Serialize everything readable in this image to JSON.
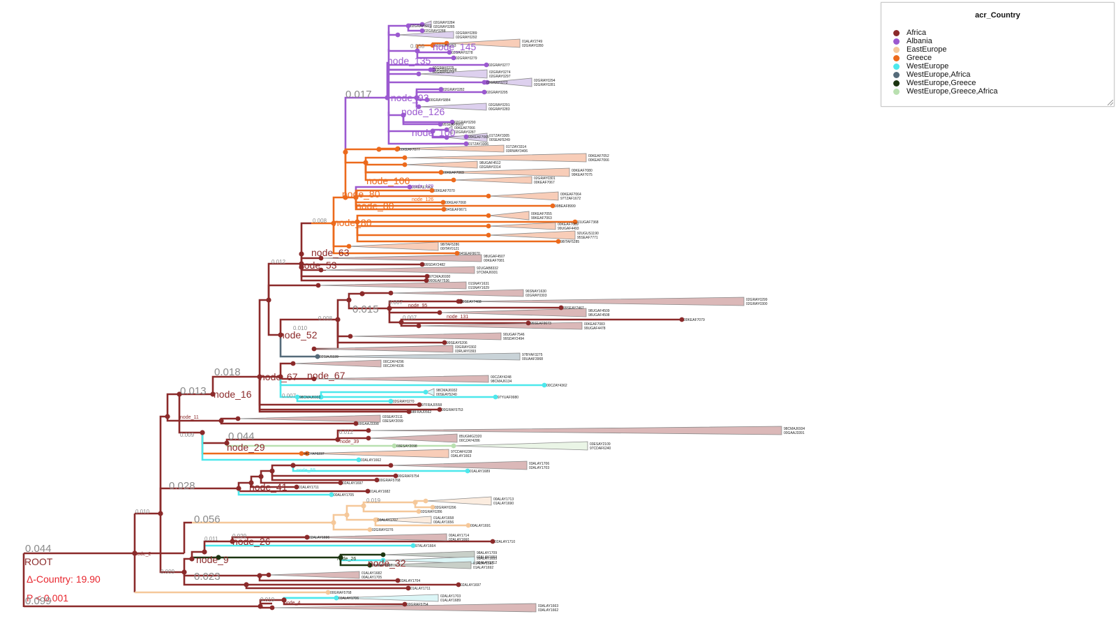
{
  "legend": {
    "title": "acr_Country",
    "items": [
      {
        "label": "Africa",
        "color": "#8b2a2a"
      },
      {
        "label": "Albania",
        "color": "#9b59d0"
      },
      {
        "label": "EastEurope",
        "color": "#f5c89a"
      },
      {
        "label": "Greece",
        "color": "#ec6a1c"
      },
      {
        "label": "WestEurope",
        "color": "#4de8ec"
      },
      {
        "label": "WestEurope,Africa",
        "color": "#556b7a"
      },
      {
        "label": "WestEurope,Greece",
        "color": "#1c3511"
      },
      {
        "label": "WestEurope,Greece,Africa",
        "color": "#b9e0b0"
      }
    ]
  },
  "root": {
    "label": "ROOT",
    "delta": "Δ-Country: 19.90",
    "pvalue": "P < 0.001",
    "root_branch_length": "0.044",
    "lower_branch_length": "0.099"
  },
  "branch_labels": [
    "0.017",
    "0.012",
    "0.015",
    "0.018",
    "0.013",
    "0.044",
    "0.028",
    "0.056",
    "0.023",
    "0.029",
    "0.011",
    "0.019",
    "0.010",
    "0.009",
    "0.008",
    "0.007"
  ],
  "node_labels": [
    "node_2",
    "node_4",
    "node_9",
    "node_11",
    "node_16",
    "node_26",
    "node_29",
    "node_32",
    "node_39",
    "node_41",
    "node_52",
    "node_53",
    "node_55",
    "node_63",
    "node_67",
    "node_80",
    "node_93",
    "node_95",
    "node_100",
    "node_106",
    "node_126",
    "node_129",
    "node_131",
    "node_135",
    "node_145"
  ],
  "tips": [
    "03ALAY1663",
    "03ALAY1662",
    "03ALAY1706",
    "02ALAY1703",
    "01ALAY1689",
    "00GRAF5754",
    "00GRAF5768",
    "02ALAY1697",
    "01ALAY1711",
    "01ALAY1682",
    "00ALAY1705",
    "03ALAY1704",
    "97ALAY1664",
    "02ALAY1696",
    "00ALAY1714",
    "02ALAY1660",
    "02ALAY1710",
    "98ALAY1709",
    "02ALAY1653",
    "99ALAY1655",
    "99ALAY1712",
    "01ALAY1657",
    "01ALAY1698",
    "01ALAY1692",
    "03ALAY1707",
    "01ALAY1658",
    "00ALAY1656",
    "00ALAY1691",
    "00ALAY1713",
    "01ALAY1690",
    "02GRAY0296",
    "02GRAY0286",
    "02GRAY0276",
    "02GRAY0271",
    "02GRAY0284",
    "02GRAY0285",
    "02GRAY0288",
    "02GRAY0289",
    "02GRAY0292",
    "02GRAY0293",
    "01ALAY2749",
    "02GRAY0280",
    "02GRAY0278",
    "02GRAY0279",
    "02GRAY0277",
    "02GRAY0298",
    "02GRAY0275",
    "02GRAY0273",
    "02GRAY0274",
    "02GRAY0297",
    "02GRAY0272",
    "02GRAY0294",
    "02GRAY0281",
    "02GRAY0282",
    "02GRAY0295",
    "00GRAY6884",
    "02GRAY0291",
    "00GRAY0283",
    "02GRAY0290",
    "95SEAF9669",
    "00KEAF7066",
    "02GRAY0287",
    "99KEAF7065",
    "01TZAY3306",
    "01TZAY3305",
    "00SEAF5249",
    "01TZAY3314",
    "03RWAY3406",
    "00KEAF7077",
    "00KEAF7052",
    "00KEAF7066",
    "98UGAF4512",
    "02GRAY0314",
    "00KEAF7069",
    "00KEAF7080",
    "99KEAF7075",
    "02GRAY0301",
    "00KEAF7067",
    "00KEAF7053",
    "00KEAF7070",
    "00KEAF7064",
    "97TZAF1672",
    "00KEAF7068",
    "99BEAF8999",
    "94SEAF9671",
    "00KEAF7055",
    "99KEAF7063",
    "91UGAF7368",
    "00KEAF7089",
    "99UGAF4493",
    "92UGUS1190",
    "95SEAF7771",
    "98ITAF5285",
    "98ITAF5286",
    "00ITAY0121",
    "94SEAF9670",
    "98UGAF4507",
    "00KEAF7081",
    "99SDAY2482",
    "92UGAB8332",
    "97CMAJ6931",
    "97CMAJ6930",
    "99DEAF7536",
    "01SNAY1631",
    "01SNAY1629",
    "96SNAY1630",
    "02GRAY0303",
    "99SEAY7468",
    "02GRAY0299",
    "02GRAY0300",
    "99SEAY7467",
    "98UGAF4509",
    "98UGAF4508",
    "95SEAF9673",
    "00KEAF7079",
    "00KEAF7083",
    "99UGAF4478",
    "90UGAF7546",
    "99SDAY2494",
    "99SEAY5206",
    "03GRAY0302",
    "03RUAY0393",
    "02SIAJ1139",
    "97BYAF3275",
    "00UAAF3968",
    "00CZAY4296",
    "00CZAY4336",
    "00CZAY4362",
    "00CZAY4248",
    "98CMAJ6134",
    "98CMAJ6933",
    "98CMAJ6932",
    "00SEAY5240",
    "97YUAF9980",
    "02GRAY0270",
    "97FRAJ0558",
    "98FRAJ0562",
    "00GRAF5753",
    "03SEAY2111",
    "03ESAY2099",
    "00GAAJ3398",
    "98CMAJ6934",
    "00GAAJ3391",
    "85UGMG2320",
    "00CZAY4286",
    "03ESAY2098",
    "03ESAY2109",
    "97CDAF6240",
    "94CYAF6237",
    "97CDAF6238"
  ]
}
